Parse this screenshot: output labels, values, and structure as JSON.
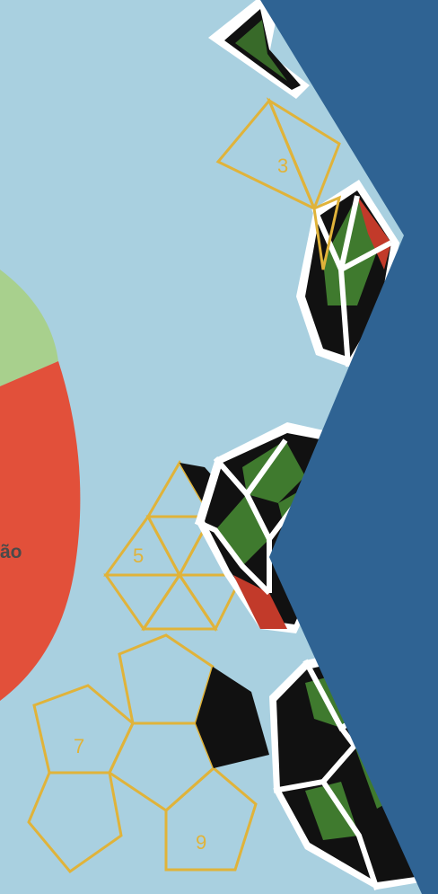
{
  "pie": {
    "visible_label": "ão"
  },
  "net_numbers": {
    "net_3": "3",
    "net_5": "5",
    "net_7": "7",
    "net_9": "9"
  },
  "colors": {
    "background": "#a9d0e0",
    "pie_green": "#a8d08d",
    "pie_red": "#e2503a",
    "panel_blue": "#2f6393",
    "outline_gold": "#e0b33a",
    "polyhedron_black": "#111111",
    "polyhedron_green": "#3f7a2e",
    "polyhedron_red": "#c23a2a",
    "polyhedron_white": "#ffffff"
  }
}
